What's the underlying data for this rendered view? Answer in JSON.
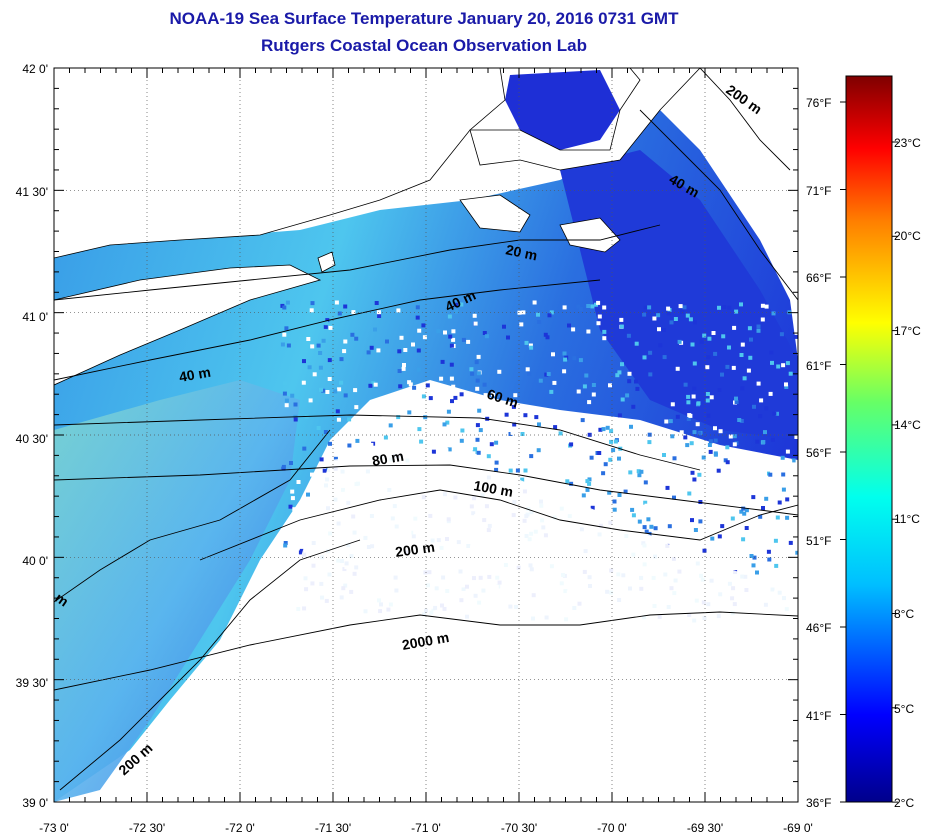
{
  "title": "NOAA-19 Sea Surface Temperature January 20, 2016 0731 GMT",
  "subtitle": "Rutgers Coastal Ocean Observation Lab",
  "map": {
    "lon_labels": [
      "-73 0'",
      "-72 30'",
      "-72 0'",
      "-71 30'",
      "-71 0'",
      "-70 30'",
      "-70 0'",
      "-69 30'",
      "-69 0'"
    ],
    "lat_labels": [
      "42 0'",
      "41 30'",
      "41 0'",
      "40 30'",
      "40 0'",
      "39 30'",
      "39 0'"
    ],
    "depth_labels": [
      "200 m",
      "40 m",
      "20 m",
      "40 m",
      "40 m",
      "60 m",
      "80 m",
      "100 m",
      "200 m",
      "2000 m",
      "200 m",
      "m"
    ]
  },
  "colorbar": {
    "fahrenheit": [
      "76°F",
      "71°F",
      "66°F",
      "61°F",
      "56°F",
      "51°F",
      "46°F",
      "41°F",
      "36°F"
    ],
    "celsius": [
      "23°C",
      "20°C",
      "17°C",
      "14°C",
      "11°C",
      "8°C",
      "5°C",
      "2°C"
    ]
  }
}
